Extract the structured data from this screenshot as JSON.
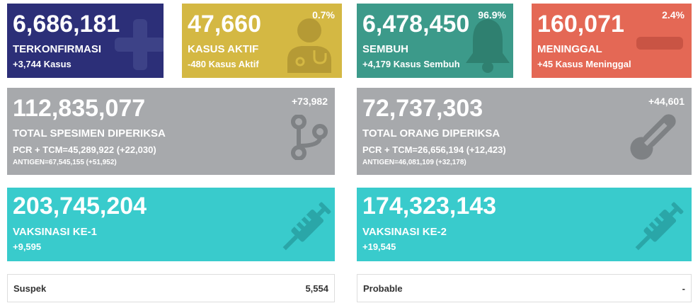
{
  "confirmed": {
    "value": "6,686,181",
    "label": "TERKONFIRMASI",
    "sub": "+3,744 Kasus",
    "icon": "plus-icon",
    "color": "#2c2f78"
  },
  "active": {
    "value": "47,660",
    "label": "KASUS AKTIF",
    "sub": "-480 Kasus Aktif",
    "percent": "0.7%",
    "icon": "doctor-icon",
    "color": "#d4b843"
  },
  "recovered": {
    "value": "6,478,450",
    "label": "SEMBUH",
    "sub": "+4,179 Kasus Sembuh",
    "percent": "96.9%",
    "icon": "bell-icon",
    "color": "#3c9a8a"
  },
  "deaths": {
    "value": "160,071",
    "label": "MENINGGAL",
    "sub": "+45 Kasus Meninggal",
    "percent": "2.4%",
    "icon": "minus-icon",
    "color": "#e46855"
  },
  "specimens": {
    "value": "112,835,077",
    "label": "TOTAL SPESIMEN DIPERIKSA",
    "pcr": "PCR + TCM=45,289,922 (+22,030)",
    "antigen": "ANTIGEN=67,545,155 (+51,952)",
    "delta": "+73,982",
    "icon": "branch-icon",
    "color": "#a7a9ac"
  },
  "people": {
    "value": "72,737,303",
    "label": "TOTAL ORANG DIPERIKSA",
    "pcr": "PCR + TCM=26,656,194 (+12,423)",
    "antigen": "ANTIGEN=46,081,109 (+32,178)",
    "delta": "+44,601",
    "icon": "thermometer-icon",
    "color": "#a7a9ac"
  },
  "vaccine1": {
    "value": "203,745,204",
    "label": "VAKSINASI KE-1",
    "sub": "+9,595",
    "icon": "syringe-icon",
    "color": "#39cbcc"
  },
  "vaccine2": {
    "value": "174,323,143",
    "label": "VAKSINASI KE-2",
    "sub": "+19,545",
    "icon": "syringe-icon",
    "color": "#39cbcc"
  },
  "suspect": {
    "label": "Suspek",
    "value": "5,554"
  },
  "probable": {
    "label": "Probable",
    "value": "-"
  }
}
